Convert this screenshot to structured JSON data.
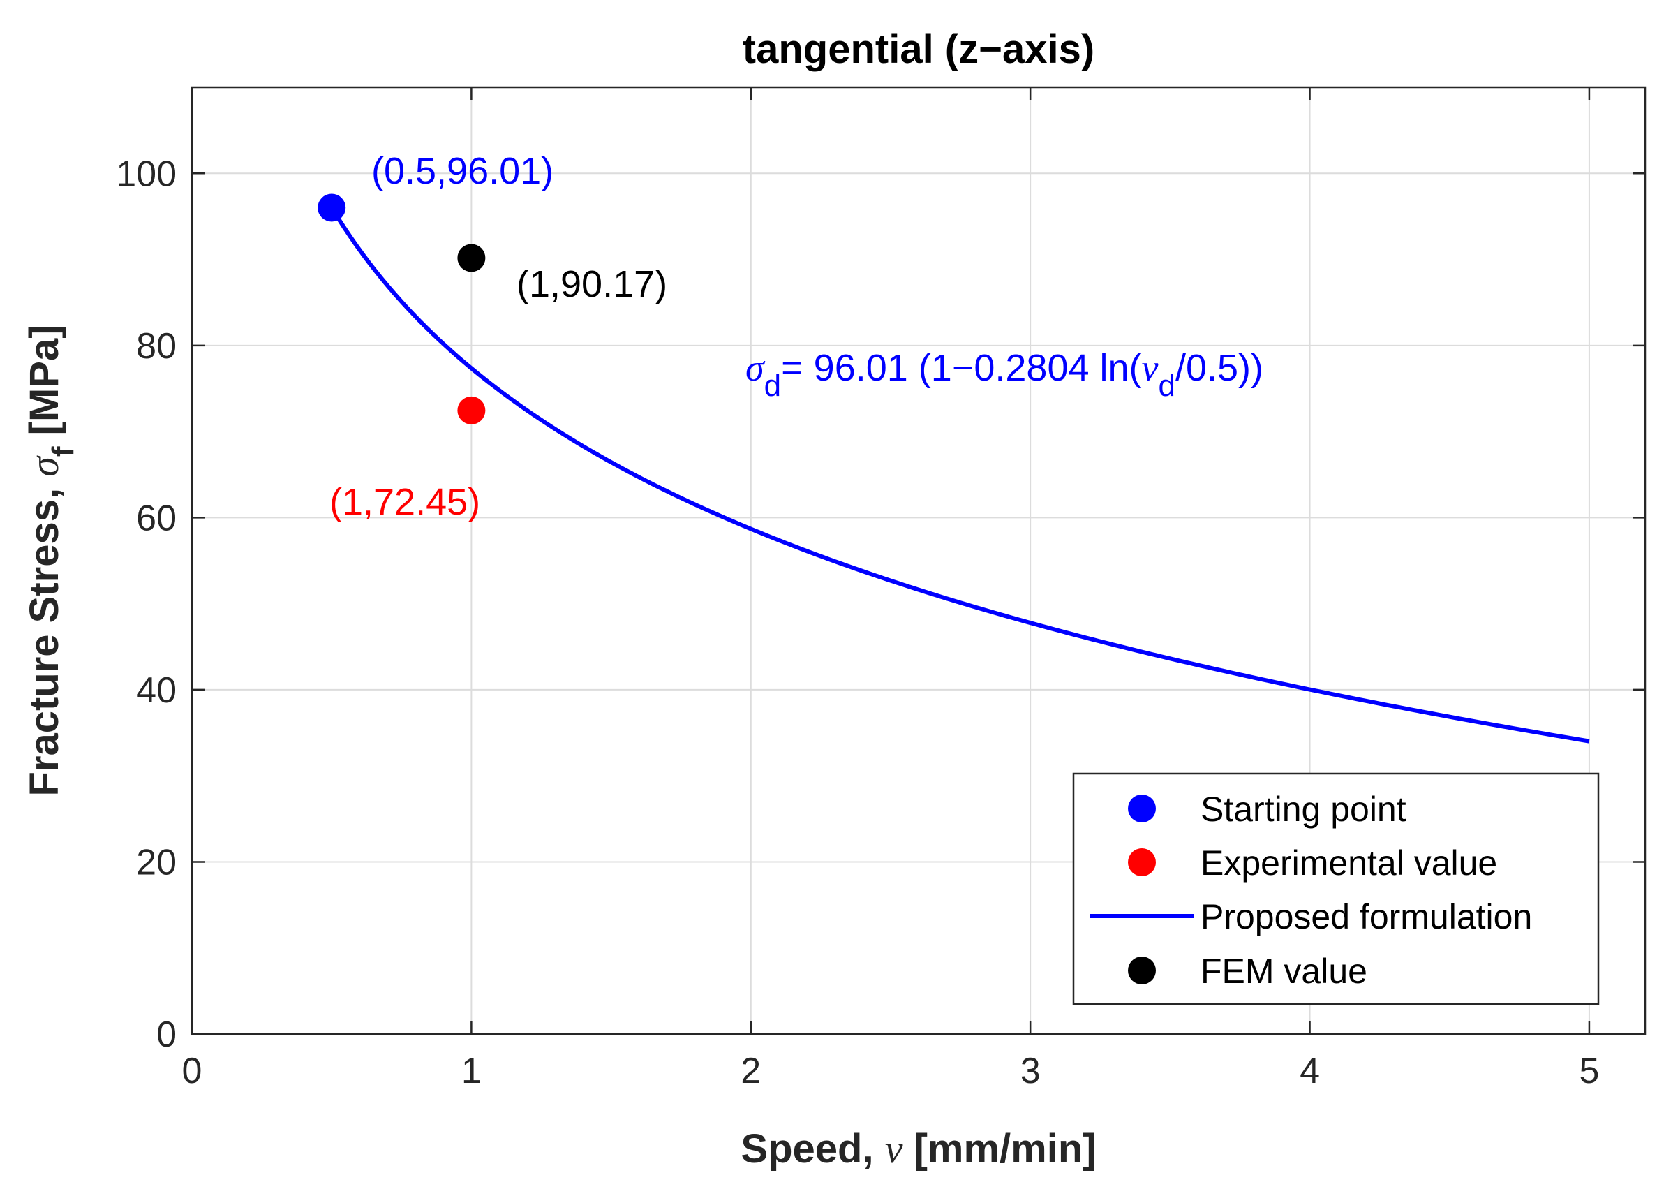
{
  "chart_data": {
    "type": "line",
    "title": "tangential (z−axis)",
    "xlabel": {
      "prefix": "Speed, ",
      "symbol": "ν",
      "suffix": " [mm/min]"
    },
    "ylabel": {
      "prefix": "Fracture Stress, ",
      "symbol": "σ",
      "subscript": "f",
      "suffix": " [MPa]"
    },
    "xlim": [
      0,
      5.2
    ],
    "ylim": [
      0,
      110
    ],
    "xticks": [
      0,
      1,
      2,
      3,
      4,
      5
    ],
    "yticks": [
      0,
      20,
      40,
      60,
      80,
      100
    ],
    "grid": true,
    "series": [
      {
        "name": "Starting point",
        "kind": "point",
        "color": "#0000ff",
        "x": [
          0.5
        ],
        "y": [
          96.01
        ]
      },
      {
        "name": "Experimental value",
        "kind": "point",
        "color": "#ff0000",
        "x": [
          1
        ],
        "y": [
          72.45
        ]
      },
      {
        "name": "Proposed formulation",
        "kind": "line",
        "color": "#0000ff",
        "formula": {
          "sigma0": 96.01,
          "k": 0.2804,
          "v0": 0.5
        },
        "x_range": [
          0.5,
          5
        ]
      },
      {
        "name": "FEM value",
        "kind": "point",
        "color": "#000000",
        "x": [
          1
        ],
        "y": [
          90.17
        ]
      }
    ],
    "annotations": {
      "start": {
        "text": "(0.5,96.01)",
        "color": "#0000ff"
      },
      "experimental": {
        "text": "(1,72.45)",
        "color": "#ff0000"
      },
      "fem": {
        "text": "(1,90.17)",
        "color": "#000000"
      },
      "equation": {
        "color": "#0000ff",
        "sigma": "σ",
        "sub_d": "d",
        "middle": "= 96.01 (1−0.2804 ln(",
        "nu": "ν",
        "end": "/0.5))"
      }
    },
    "legend": {
      "position": "bottom-right",
      "items": [
        {
          "label": "Starting point",
          "marker": "dot",
          "color": "#0000ff"
        },
        {
          "label": "Experimental value",
          "marker": "dot",
          "color": "#ff0000"
        },
        {
          "label": "Proposed formulation",
          "marker": "line",
          "color": "#0000ff"
        },
        {
          "label": "FEM value",
          "marker": "dot",
          "color": "#000000"
        }
      ]
    }
  }
}
